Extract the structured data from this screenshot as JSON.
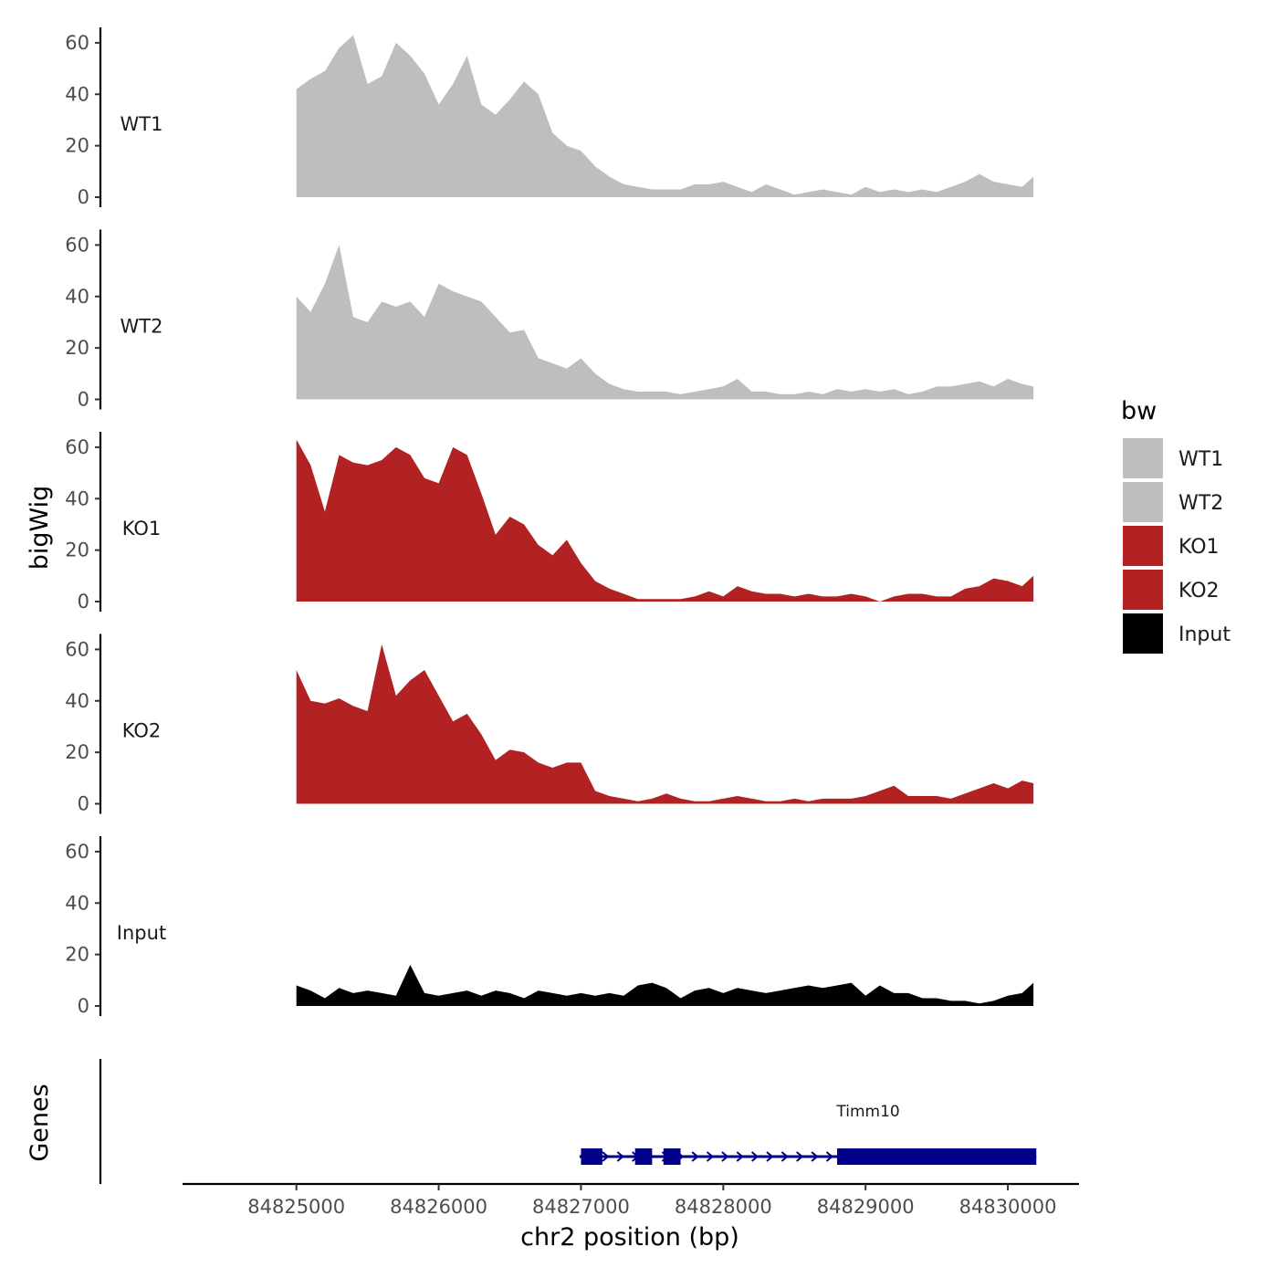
{
  "chart_data": {
    "type": "area",
    "title": "",
    "xlabel": "chr2 position (bp)",
    "ylabel": "bigWig",
    "genes_label": "Genes",
    "x_ticks": [
      84825000,
      84826000,
      84827000,
      84828000,
      84829000,
      84830000
    ],
    "x_tick_labels": [
      "84825000",
      "84826000",
      "84827000",
      "84828000",
      "84829000",
      "84830000"
    ],
    "xlim": [
      84824200,
      84830500
    ],
    "ylim": [
      0,
      66
    ],
    "y_ticks": [
      0,
      20,
      40,
      60
    ],
    "y_tick_labels": [
      "0",
      "20",
      "40",
      "60"
    ],
    "x": [
      84825000,
      84825100,
      84825200,
      84825300,
      84825400,
      84825500,
      84825600,
      84825700,
      84825800,
      84825900,
      84826000,
      84826100,
      84826200,
      84826300,
      84826400,
      84826500,
      84826600,
      84826700,
      84826800,
      84826900,
      84827000,
      84827100,
      84827200,
      84827300,
      84827400,
      84827500,
      84827600,
      84827700,
      84827800,
      84827900,
      84828000,
      84828100,
      84828200,
      84828300,
      84828400,
      84828500,
      84828600,
      84828700,
      84828800,
      84828900,
      84829000,
      84829100,
      84829200,
      84829300,
      84829400,
      84829500,
      84829600,
      84829700,
      84829800,
      84829900,
      84830000,
      84830100,
      84830180
    ],
    "series": [
      {
        "name": "WT1",
        "color": "#bebebe",
        "values": [
          42,
          46,
          49,
          58,
          63,
          44,
          47,
          60,
          55,
          48,
          36,
          44,
          55,
          36,
          32,
          38,
          45,
          40,
          25,
          20,
          18,
          12,
          8,
          5,
          4,
          3,
          3,
          3,
          5,
          5,
          6,
          4,
          2,
          5,
          3,
          1,
          2,
          3,
          2,
          1,
          4,
          2,
          3,
          2,
          3,
          2,
          4,
          6,
          9,
          6,
          5,
          4,
          8
        ]
      },
      {
        "name": "WT2",
        "color": "#bebebe",
        "values": [
          40,
          34,
          45,
          60,
          32,
          30,
          38,
          36,
          38,
          32,
          45,
          42,
          40,
          38,
          32,
          26,
          27,
          16,
          14,
          12,
          16,
          10,
          6,
          4,
          3,
          3,
          3,
          2,
          3,
          4,
          5,
          8,
          3,
          3,
          2,
          2,
          3,
          2,
          4,
          3,
          4,
          3,
          4,
          2,
          3,
          5,
          5,
          6,
          7,
          5,
          8,
          6,
          5
        ]
      },
      {
        "name": "KO1",
        "color": "#b22222",
        "values": [
          63,
          53,
          35,
          57,
          54,
          53,
          55,
          60,
          57,
          48,
          46,
          60,
          57,
          42,
          26,
          33,
          30,
          22,
          18,
          24,
          15,
          8,
          5,
          3,
          1,
          1,
          1,
          1,
          2,
          4,
          2,
          6,
          4,
          3,
          3,
          2,
          3,
          2,
          2,
          3,
          2,
          0,
          2,
          3,
          3,
          2,
          2,
          5,
          6,
          9,
          8,
          6,
          10
        ]
      },
      {
        "name": "KO2",
        "color": "#b22222",
        "values": [
          52,
          40,
          39,
          41,
          38,
          36,
          62,
          42,
          48,
          52,
          42,
          32,
          35,
          27,
          17,
          21,
          20,
          16,
          14,
          16,
          16,
          5,
          3,
          2,
          1,
          2,
          4,
          2,
          1,
          1,
          2,
          3,
          2,
          1,
          1,
          2,
          1,
          2,
          2,
          2,
          3,
          5,
          7,
          3,
          3,
          3,
          2,
          4,
          6,
          8,
          6,
          9,
          8
        ]
      },
      {
        "name": "Input",
        "color": "#000000",
        "values": [
          8,
          6,
          3,
          7,
          5,
          6,
          5,
          4,
          16,
          5,
          4,
          5,
          6,
          4,
          6,
          5,
          3,
          6,
          5,
          4,
          5,
          4,
          5,
          4,
          8,
          9,
          7,
          3,
          6,
          7,
          5,
          7,
          6,
          5,
          6,
          7,
          8,
          7,
          8,
          9,
          4,
          8,
          5,
          5,
          3,
          3,
          2,
          2,
          1,
          2,
          4,
          5,
          9
        ]
      }
    ],
    "legend": {
      "title": "bw",
      "position": "right",
      "entries": [
        {
          "label": "WT1",
          "color": "#bebebe"
        },
        {
          "label": "WT2",
          "color": "#bebebe"
        },
        {
          "label": "KO1",
          "color": "#b22222"
        },
        {
          "label": "KO2",
          "color": "#b22222"
        },
        {
          "label": "Input",
          "color": "#000000"
        }
      ]
    },
    "gene": {
      "name": "Timm10",
      "color": "#00008b",
      "start": 84826990,
      "end": 84830200,
      "exons": [
        [
          84827000,
          84827150
        ],
        [
          84827380,
          84827500
        ],
        [
          84827580,
          84827700
        ],
        [
          84828800,
          84830200
        ]
      ]
    }
  }
}
